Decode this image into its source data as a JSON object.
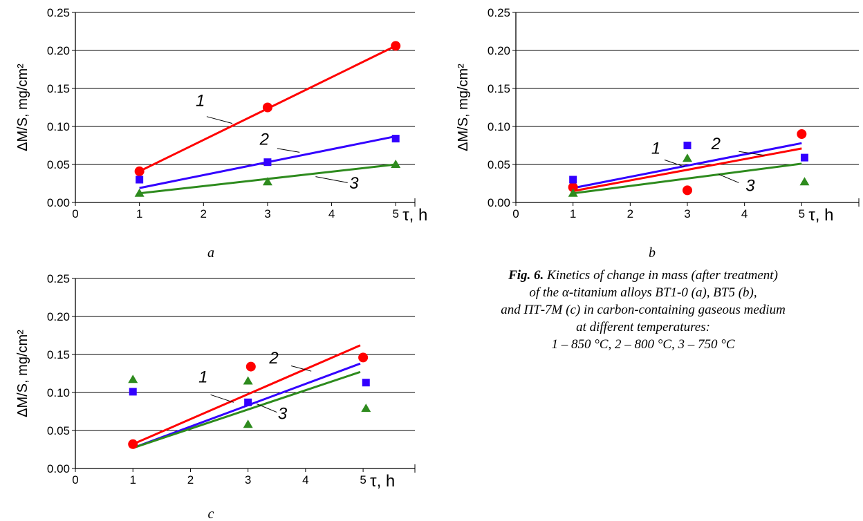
{
  "caption": {
    "fig_label": "Fig. 6.",
    "lines": [
      "Kinetics of change in mass (after treatment)",
      "of the α-titanium alloys BT1-0 (a), BT5 (b),",
      "and ПТ-7М (c) in carbon-containing gaseous medium",
      "at different temperatures:",
      "1 – 850 °C, 2 – 800 °C, 3 – 750 °C"
    ]
  },
  "colors": {
    "series1": "#ff0000",
    "series2": "#3300ff",
    "series3": "#2e8b1e"
  },
  "chart_data": [
    {
      "id": "a",
      "type": "scatter",
      "panel_label": "a",
      "ylabel": "ΔM/S, mg/cm²",
      "xlabel": "τ, h",
      "xlim": [
        0,
        5.3
      ],
      "ylim": [
        0,
        0.25
      ],
      "x_ticks": [
        "0",
        "1",
        "2",
        "3",
        "4",
        "5"
      ],
      "y_ticks": [
        "0.00",
        "0.05",
        "0.10",
        "0.15",
        "0.20",
        "0.25"
      ],
      "grid": "horizontal",
      "series": [
        {
          "label": "1",
          "marker": "circle",
          "points": [
            [
              1,
              0.041
            ],
            [
              3,
              0.125
            ],
            [
              5,
              0.206
            ]
          ],
          "trend": [
            [
              1,
              0.041
            ],
            [
              5,
              0.206
            ]
          ]
        },
        {
          "label": "2",
          "marker": "square",
          "points": [
            [
              1,
              0.03
            ],
            [
              3,
              0.053
            ],
            [
              5,
              0.084
            ]
          ],
          "trend": [
            [
              1,
              0.019
            ],
            [
              5,
              0.087
            ]
          ]
        },
        {
          "label": "3",
          "marker": "triangle",
          "points": [
            [
              1,
              0.012
            ],
            [
              3,
              0.027
            ],
            [
              5,
              0.05
            ]
          ],
          "trend": [
            [
              1,
              0.012
            ],
            [
              5,
              0.05
            ]
          ]
        }
      ],
      "curve_labels": [
        {
          "text": "1",
          "x": 1.95,
          "y": 0.127,
          "leader": [
            [
              2.05,
              0.113
            ],
            [
              2.45,
              0.104
            ]
          ]
        },
        {
          "text": "2",
          "x": 2.95,
          "y": 0.076,
          "leader": [
            [
              3.15,
              0.071
            ],
            [
              3.5,
              0.066
            ]
          ]
        },
        {
          "text": "3",
          "x": 4.35,
          "y": 0.018,
          "leader": [
            [
              4.25,
              0.026
            ],
            [
              3.75,
              0.034
            ]
          ]
        }
      ]
    },
    {
      "id": "b",
      "type": "scatter",
      "panel_label": "b",
      "ylabel": "ΔM/S, mg/cm²",
      "xlabel": "τ, h",
      "xlim": [
        0,
        6
      ],
      "ylim": [
        0,
        0.25
      ],
      "x_ticks": [
        "0",
        "1",
        "2",
        "3",
        "4",
        "5"
      ],
      "y_ticks": [
        "0.00",
        "0.05",
        "0.10",
        "0.15",
        "0.20",
        "0.25"
      ],
      "grid": "horizontal",
      "series": [
        {
          "label": "1",
          "marker": "circle",
          "points": [
            [
              1,
              0.02
            ],
            [
              3,
              0.016
            ],
            [
              5,
              0.09
            ]
          ],
          "trend": [
            [
              1,
              0.015
            ],
            [
              5,
              0.071
            ]
          ]
        },
        {
          "label": "2",
          "marker": "square",
          "points": [
            [
              1,
              0.03
            ],
            [
              3,
              0.075
            ],
            [
              5.05,
              0.059
            ]
          ],
          "trend": [
            [
              1,
              0.019
            ],
            [
              5,
              0.078
            ]
          ]
        },
        {
          "label": "3",
          "marker": "triangle",
          "points": [
            [
              1,
              0.012
            ],
            [
              3,
              0.058
            ],
            [
              5.05,
              0.027
            ]
          ],
          "trend": [
            [
              1,
              0.012
            ],
            [
              5,
              0.051
            ]
          ]
        }
      ],
      "curve_labels": [
        {
          "text": "1",
          "x": 2.45,
          "y": 0.064,
          "leader": [
            [
              2.6,
              0.056
            ],
            [
              2.95,
              0.047
            ]
          ]
        },
        {
          "text": "2",
          "x": 3.5,
          "y": 0.07,
          "leader": [
            [
              3.9,
              0.067
            ],
            [
              4.35,
              0.062
            ]
          ]
        },
        {
          "text": "3",
          "x": 4.1,
          "y": 0.015,
          "leader": [
            [
              3.9,
              0.026
            ],
            [
              3.55,
              0.037
            ]
          ]
        }
      ]
    },
    {
      "id": "c",
      "type": "scatter",
      "panel_label": "c",
      "ylabel": "ΔM/S, mg/cm²",
      "xlabel": "τ, h",
      "xlim": [
        0,
        5.9
      ],
      "ylim": [
        0,
        0.25
      ],
      "x_ticks": [
        "0",
        "1",
        "2",
        "3",
        "4",
        "5"
      ],
      "y_ticks": [
        "0.00",
        "0.05",
        "0.10",
        "0.15",
        "0.20",
        "0.25"
      ],
      "grid": "horizontal",
      "series": [
        {
          "label": "1",
          "marker": "circle",
          "points": [
            [
              1,
              0.032
            ],
            [
              3.05,
              0.134
            ],
            [
              5,
              0.146
            ]
          ],
          "trend": [
            [
              1,
              0.032
            ],
            [
              4.95,
              0.162
            ]
          ]
        },
        {
          "label": "2",
          "marker": "square",
          "points": [
            [
              1,
              0.101
            ],
            [
              3,
              0.087
            ],
            [
              5.05,
              0.113
            ]
          ],
          "trend": [
            [
              1,
              0.027
            ],
            [
              4.95,
              0.138
            ]
          ]
        },
        {
          "label": "3",
          "marker": "triangle",
          "points": [
            [
              1,
              0.117
            ],
            [
              3,
              0.115
            ],
            [
              3,
              0.058
            ],
            [
              5.05,
              0.079
            ]
          ],
          "trend": [
            [
              1,
              0.027
            ],
            [
              4.95,
              0.127
            ]
          ]
        }
      ],
      "curve_labels": [
        {
          "text": "1",
          "x": 2.22,
          "y": 0.113,
          "leader": [
            [
              2.35,
              0.097
            ],
            [
              2.75,
              0.087
            ]
          ]
        },
        {
          "text": "2",
          "x": 3.45,
          "y": 0.138,
          "leader": [
            [
              3.75,
              0.135
            ],
            [
              4.1,
              0.128
            ]
          ]
        },
        {
          "text": "3",
          "x": 3.6,
          "y": 0.065,
          "leader": [
            [
              3.5,
              0.074
            ],
            [
              3.15,
              0.085
            ]
          ]
        }
      ]
    }
  ]
}
